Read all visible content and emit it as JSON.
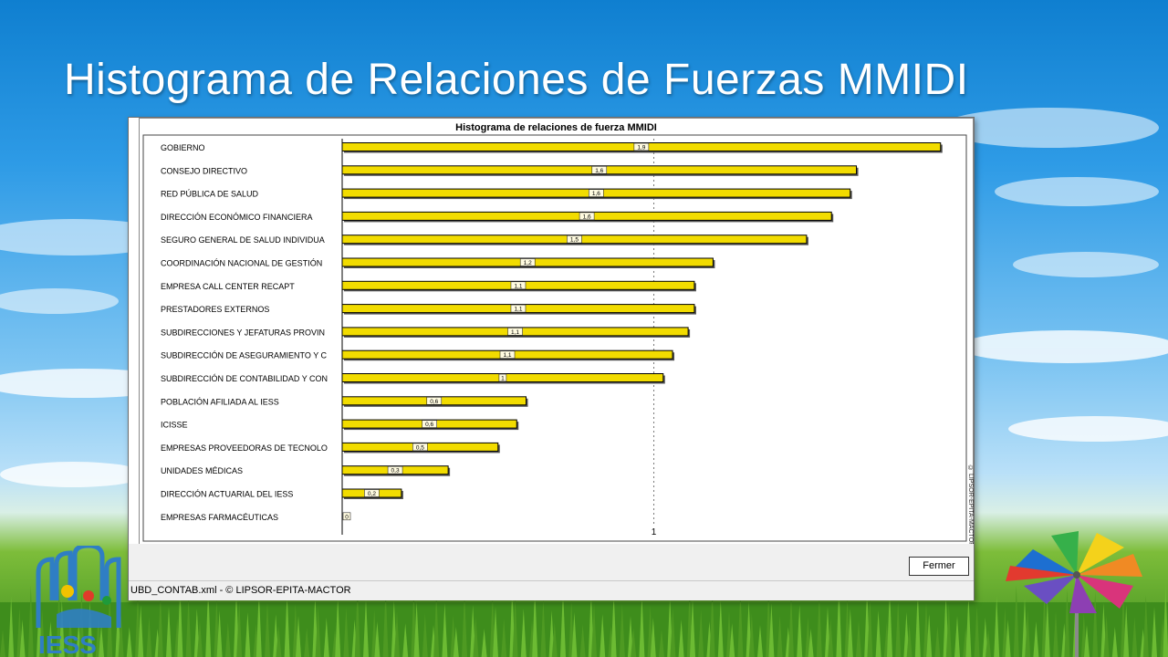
{
  "slide": {
    "title": "Histograma de Relaciones de Fuerzas MMIDI"
  },
  "window": {
    "close_button_label": "Fermer",
    "status_text": "UBD_CONTAB.xml  - © LIPSOR-EPITA-MACTOR",
    "vertical_copyright": "© LIPSOR-EPITA-MACTOR"
  },
  "logo": {
    "text": "IESS"
  },
  "chart_data": {
    "type": "bar",
    "orientation": "horizontal",
    "title": "Histograma de relaciones de fuerza MMIDI",
    "categories": [
      "GOBIERNO",
      "CONSEJO DIRECTIVO",
      "RED PÚBLICA DE SALUD",
      "DIRECCIÓN ECONÓMICO FINANCIERA",
      "SEGURO GENERAL DE SALUD INDIVIDUA",
      "COORDINACIÓN NACIONAL DE GESTIÓN",
      "EMPRESA CALL CENTER RECAPT",
      "PRESTADORES EXTERNOS",
      "SUBDIRECCIONES Y JEFATURAS PROVIN",
      "SUBDIRECCIÓN DE ASEGURAMIENTO Y C",
      "SUBDIRECCIÓN DE CONTABILIDAD Y CON",
      "POBLACIÓN AFILIADA AL IESS",
      "ICISSE",
      "EMPRESAS PROVEEDORAS DE TECNOLO",
      "UNIDADES MÉDICAS",
      "DIRECCIÓN ACTUARIAL DEL IESS",
      "EMPRESAS FARMACÉUTICAS"
    ],
    "values": [
      1.92,
      1.65,
      1.63,
      1.57,
      1.49,
      1.19,
      1.13,
      1.13,
      1.11,
      1.06,
      1.03,
      0.59,
      0.56,
      0.5,
      0.34,
      0.19,
      0.0
    ],
    "value_labels": [
      "1,9",
      "1,6",
      "1,6",
      "1,6",
      "1,5",
      "1,2",
      "1,1",
      "1,1",
      "1,1",
      "1,1",
      "1",
      "0,6",
      "0,6",
      "0,5",
      "0,3",
      "0,2",
      "0"
    ],
    "xtick_labels": [
      "1"
    ],
    "xtick_values": [
      1
    ],
    "xlim": [
      0,
      1.95
    ],
    "bar_color": "#f2dc00",
    "bar_border": "#000000",
    "reference_line": 1,
    "grid": false,
    "legend": "none"
  }
}
